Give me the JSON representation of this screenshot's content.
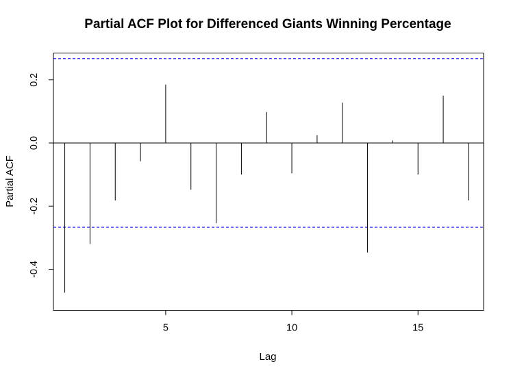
{
  "chart_data": {
    "type": "bar",
    "title": "Partial ACF Plot for Differenced Giants Winning Percentage",
    "xlabel": "Lag",
    "ylabel": "Partial ACF",
    "xlim": [
      0.55,
      17.6
    ],
    "ylim": [
      -0.53,
      0.285
    ],
    "x_ticks": [
      5,
      10,
      15
    ],
    "y_ticks": [
      -0.4,
      -0.2,
      0.0,
      0.2
    ],
    "x_tick_labels": [
      "5",
      "10",
      "15"
    ],
    "y_tick_labels": [
      "-0.4",
      "-0.2",
      "0.0",
      "0.2"
    ],
    "x": [
      1,
      2,
      3,
      4,
      5,
      6,
      7,
      8,
      9,
      10,
      11,
      12,
      13,
      14,
      15,
      16,
      17
    ],
    "values": [
      -0.474,
      -0.32,
      -0.182,
      -0.058,
      0.185,
      -0.148,
      -0.254,
      -0.1,
      0.098,
      -0.096,
      0.025,
      0.128,
      -0.347,
      0.008,
      -0.1,
      0.15,
      -0.182
    ],
    "confidence_bound": 0.267,
    "grid": false,
    "colors": {
      "bars": "#000000",
      "zero_line": "#000000",
      "ci_line": "#0000ff",
      "frame": "#000000"
    }
  }
}
